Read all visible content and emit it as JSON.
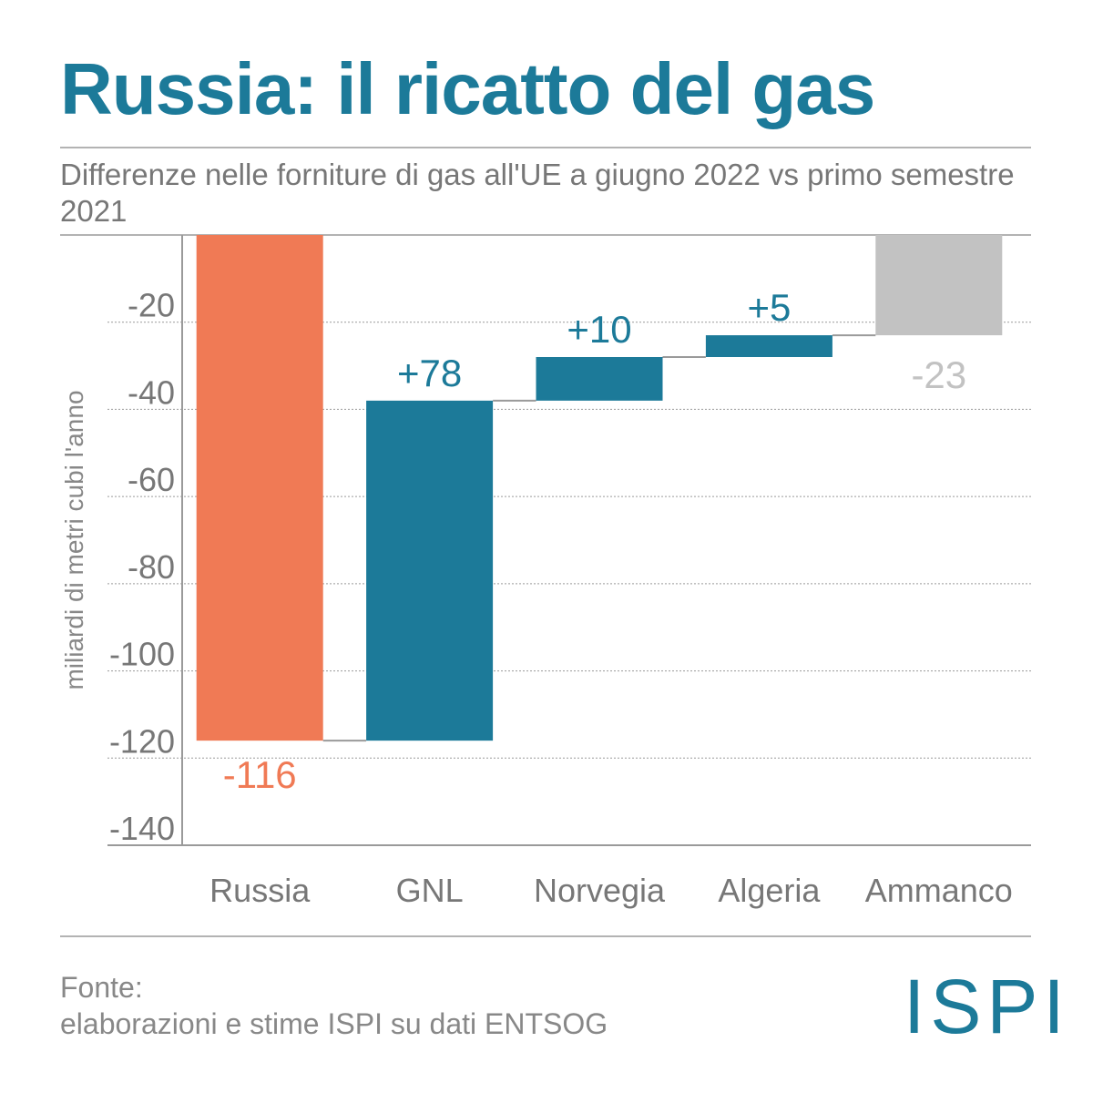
{
  "title": "Russia: il ricatto del gas",
  "subtitle": "Differenze nelle forniture di gas all'UE a giugno 2022 vs primo semestre 2021",
  "footer": {
    "line1": "Fonte:",
    "line2": "elaborazioni e stime ISPI su dati ENTSOG"
  },
  "logo": "ISPI",
  "colors": {
    "title": "#1c7a99",
    "russia": "#f07a55",
    "supply": "#1c7a99",
    "shortfall": "#c2c2c2"
  },
  "chart_data": {
    "type": "bar",
    "subtype": "waterfall",
    "ylabel": "miliardi di metri cubi l'anno",
    "ylim": [
      -140,
      0
    ],
    "yticks": [
      "-20",
      "-40",
      "-60",
      "-80",
      "-100",
      "-120",
      "-140"
    ],
    "categories": [
      "Russia",
      "GNL",
      "Norvegia",
      "Algeria",
      "Ammanco"
    ],
    "values": [
      -116,
      78,
      10,
      5,
      -23
    ],
    "data_labels": [
      "-116",
      "+78",
      "+10",
      "+5",
      "-23"
    ],
    "grid": true
  }
}
